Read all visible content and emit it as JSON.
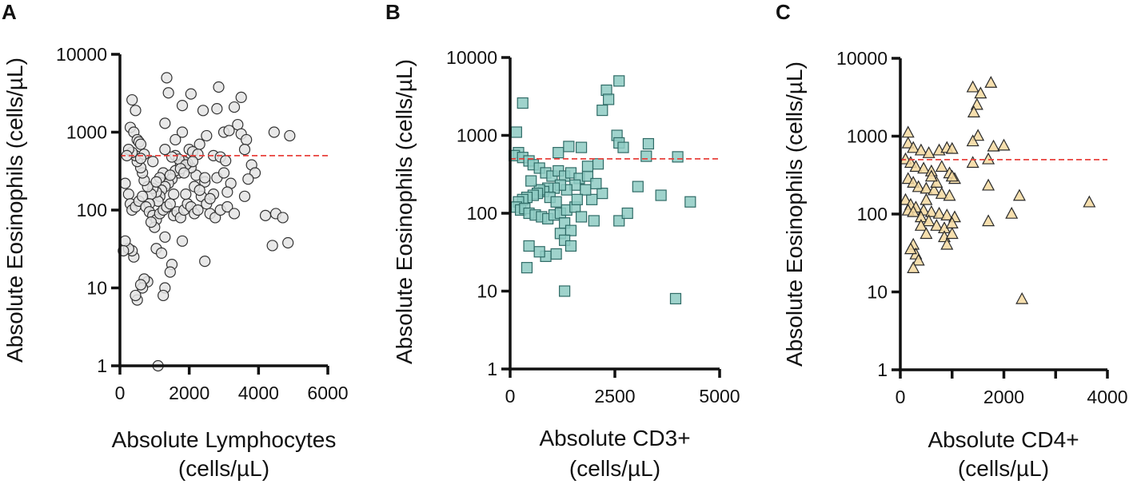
{
  "figure": {
    "reference_line_value": 500,
    "reference_line_color": "#e8413c"
  },
  "chart_data": [
    {
      "panel": "A",
      "type": "scatter",
      "marker": "circle",
      "marker_fill": "#e4e4e4",
      "marker_stroke": "#333333",
      "xlabel": [
        "Absolute Lymphocytes",
        "(cells/µL)"
      ],
      "ylabel": "Absolute Eosinophils (cells/µL)",
      "xlim": [
        0,
        6000
      ],
      "xticks": [
        0,
        2000,
        4000,
        6000
      ],
      "xtick_labels": [
        "0",
        "2000",
        "4000",
        "6000"
      ],
      "yscale": "log",
      "ylim": [
        1,
        10000
      ],
      "yticks": [
        1,
        10,
        100,
        1000,
        10000
      ],
      "ytick_labels": [
        "1",
        "10",
        "100",
        "1000",
        "10000"
      ],
      "reference_line_y": 500,
      "points": [
        [
          1350,
          5000
        ],
        [
          1400,
          3200
        ],
        [
          2050,
          3100
        ],
        [
          2850,
          3800
        ],
        [
          3500,
          2800
        ],
        [
          3300,
          2100
        ],
        [
          2800,
          2000
        ],
        [
          1800,
          2200
        ],
        [
          2400,
          1900
        ],
        [
          350,
          2600
        ],
        [
          450,
          1900
        ],
        [
          300,
          1150
        ],
        [
          400,
          1000
        ],
        [
          500,
          800
        ],
        [
          550,
          750
        ],
        [
          600,
          700
        ],
        [
          1300,
          1300
        ],
        [
          1800,
          1000
        ],
        [
          1600,
          800
        ],
        [
          2300,
          700
        ],
        [
          2500,
          900
        ],
        [
          3000,
          1000
        ],
        [
          3150,
          1050
        ],
        [
          3400,
          1250
        ],
        [
          3500,
          950
        ],
        [
          3650,
          800
        ],
        [
          4450,
          1000
        ],
        [
          4900,
          900
        ],
        [
          3600,
          600
        ],
        [
          3800,
          380
        ],
        [
          3900,
          300
        ],
        [
          3700,
          250
        ],
        [
          3200,
          220
        ],
        [
          3100,
          170
        ],
        [
          2700,
          160
        ],
        [
          2450,
          230
        ],
        [
          2200,
          280
        ],
        [
          2050,
          350
        ],
        [
          1950,
          400
        ],
        [
          1850,
          420
        ],
        [
          1750,
          380
        ],
        [
          1700,
          300
        ],
        [
          1600,
          320
        ],
        [
          1500,
          250
        ],
        [
          1400,
          220
        ],
        [
          1300,
          200
        ],
        [
          1200,
          180
        ],
        [
          1150,
          150
        ],
        [
          1100,
          130
        ],
        [
          1050,
          170
        ],
        [
          950,
          190
        ],
        [
          900,
          160
        ],
        [
          850,
          120
        ],
        [
          800,
          200
        ],
        [
          700,
          240
        ],
        [
          650,
          300
        ],
        [
          600,
          350
        ],
        [
          500,
          420
        ],
        [
          450,
          500
        ],
        [
          350,
          550
        ],
        [
          250,
          600
        ],
        [
          200,
          500
        ],
        [
          150,
          220
        ],
        [
          250,
          160
        ],
        [
          300,
          120
        ],
        [
          350,
          100
        ],
        [
          450,
          110
        ],
        [
          550,
          130
        ],
        [
          650,
          150
        ],
        [
          750,
          110
        ],
        [
          850,
          95
        ],
        [
          950,
          85
        ],
        [
          1050,
          75
        ],
        [
          1150,
          90
        ],
        [
          1250,
          100
        ],
        [
          1350,
          110
        ],
        [
          1450,
          120
        ],
        [
          1550,
          85
        ],
        [
          1650,
          95
        ],
        [
          1750,
          80
        ],
        [
          1850,
          100
        ],
        [
          1950,
          120
        ],
        [
          2050,
          110
        ],
        [
          2150,
          90
        ],
        [
          2250,
          100
        ],
        [
          2350,
          150
        ],
        [
          2500,
          120
        ],
        [
          2600,
          90
        ],
        [
          2750,
          80
        ],
        [
          2900,
          100
        ],
        [
          3100,
          110
        ],
        [
          3300,
          90
        ],
        [
          3600,
          150
        ],
        [
          4200,
          85
        ],
        [
          4500,
          90
        ],
        [
          4700,
          80
        ],
        [
          4400,
          35
        ],
        [
          4850,
          38
        ],
        [
          2450,
          22
        ],
        [
          1800,
          40
        ],
        [
          1500,
          20
        ],
        [
          1450,
          16
        ],
        [
          1300,
          10
        ],
        [
          1250,
          8
        ],
        [
          800,
          12
        ],
        [
          700,
          13
        ],
        [
          650,
          10
        ],
        [
          600,
          11
        ],
        [
          500,
          7
        ],
        [
          450,
          8
        ],
        [
          400,
          25
        ],
        [
          350,
          30
        ],
        [
          250,
          32
        ],
        [
          150,
          40
        ],
        [
          100,
          30
        ],
        [
          1050,
          32
        ],
        [
          1200,
          28
        ],
        [
          1300,
          45
        ],
        [
          1000,
          60
        ],
        [
          900,
          70
        ],
        [
          1100,
          1
        ],
        [
          1600,
          500
        ],
        [
          1700,
          450
        ],
        [
          1900,
          380
        ],
        [
          2000,
          600
        ],
        [
          2100,
          560
        ],
        [
          2250,
          520
        ],
        [
          2700,
          500
        ],
        [
          2900,
          480
        ],
        [
          3050,
          430
        ],
        [
          1250,
          300
        ],
        [
          1150,
          260
        ],
        [
          1050,
          230
        ],
        [
          2150,
          200
        ],
        [
          2300,
          180
        ],
        [
          2600,
          140
        ],
        [
          1900,
          160
        ],
        [
          1450,
          280
        ],
        [
          1750,
          340
        ],
        [
          2800,
          260
        ],
        [
          3000,
          300
        ],
        [
          950,
          420
        ],
        [
          700,
          520
        ],
        [
          600,
          460
        ],
        [
          1500,
          480
        ],
        [
          1850,
          300
        ],
        [
          2100,
          420
        ],
        [
          1300,
          600
        ],
        [
          1550,
          160
        ],
        [
          2450,
          260
        ]
      ]
    },
    {
      "panel": "B",
      "type": "scatter",
      "marker": "square",
      "marker_fill": "#8ecbc3",
      "marker_stroke": "#2f6b66",
      "xlabel": [
        "Absolute CD3+",
        "(cells/µL)"
      ],
      "ylabel": "Absolute Eosinophils (cells/µL)",
      "xlim": [
        0,
        5000
      ],
      "xticks": [
        0,
        2500,
        5000
      ],
      "xtick_labels": [
        "0",
        "2500",
        "5000"
      ],
      "yscale": "log",
      "ylim": [
        1,
        10000
      ],
      "yticks": [
        1,
        10,
        100,
        1000,
        10000
      ],
      "ytick_labels": [
        "1",
        "10",
        "100",
        "1000",
        "10000"
      ],
      "reference_line_y": 500,
      "points": [
        [
          2600,
          5000
        ],
        [
          2300,
          3800
        ],
        [
          2350,
          2900
        ],
        [
          2200,
          2100
        ],
        [
          300,
          2600
        ],
        [
          150,
          1100
        ],
        [
          2550,
          1000
        ],
        [
          2600,
          800
        ],
        [
          3300,
          780
        ],
        [
          2700,
          700
        ],
        [
          1700,
          700
        ],
        [
          1400,
          720
        ],
        [
          1150,
          600
        ],
        [
          200,
          600
        ],
        [
          100,
          550
        ],
        [
          300,
          520
        ],
        [
          450,
          470
        ],
        [
          550,
          420
        ],
        [
          700,
          380
        ],
        [
          850,
          330
        ],
        [
          1000,
          300
        ],
        [
          1150,
          350
        ],
        [
          1300,
          300
        ],
        [
          1450,
          330
        ],
        [
          1650,
          280
        ],
        [
          1850,
          300
        ],
        [
          2100,
          430
        ],
        [
          3250,
          540
        ],
        [
          4000,
          530
        ],
        [
          3050,
          220
        ],
        [
          3600,
          170
        ],
        [
          4300,
          140
        ],
        [
          2200,
          180
        ],
        [
          1950,
          150
        ],
        [
          1800,
          200
        ],
        [
          1550,
          230
        ],
        [
          1350,
          200
        ],
        [
          1200,
          230
        ],
        [
          1050,
          210
        ],
        [
          900,
          210
        ],
        [
          800,
          190
        ],
        [
          700,
          200
        ],
        [
          650,
          180
        ],
        [
          550,
          170
        ],
        [
          400,
          160
        ],
        [
          300,
          150
        ],
        [
          200,
          140
        ],
        [
          150,
          120
        ],
        [
          250,
          110
        ],
        [
          350,
          115
        ],
        [
          450,
          100
        ],
        [
          600,
          95
        ],
        [
          750,
          90
        ],
        [
          900,
          85
        ],
        [
          1050,
          95
        ],
        [
          1200,
          100
        ],
        [
          1350,
          110
        ],
        [
          1550,
          120
        ],
        [
          1700,
          90
        ],
        [
          2000,
          80
        ],
        [
          2600,
          80
        ],
        [
          2800,
          100
        ],
        [
          1300,
          75
        ],
        [
          1450,
          60
        ],
        [
          1200,
          55
        ],
        [
          1300,
          45
        ],
        [
          1450,
          38
        ],
        [
          1100,
          30
        ],
        [
          850,
          28
        ],
        [
          700,
          32
        ],
        [
          450,
          38
        ],
        [
          400,
          20
        ],
        [
          1300,
          10
        ],
        [
          3950,
          8
        ],
        [
          950,
          160
        ],
        [
          1100,
          140
        ],
        [
          2050,
          240
        ],
        [
          1600,
          150
        ],
        [
          500,
          260
        ],
        [
          1850,
          400
        ]
      ]
    },
    {
      "panel": "C",
      "type": "scatter",
      "marker": "triangle",
      "marker_fill": "#f5d9a0",
      "marker_stroke": "#2a2a2a",
      "xlabel": [
        "Absolute CD4+",
        "(cells/µL)"
      ],
      "ylabel": "Absolute Eosinophils (cells/µL)",
      "xlim": [
        0,
        4000
      ],
      "xticks": [
        0,
        1000,
        2000,
        3000,
        4000
      ],
      "xtick_labels": [
        "0",
        "",
        "2000",
        "",
        "4000"
      ],
      "yscale": "log",
      "ylim": [
        1,
        10000
      ],
      "yticks": [
        1,
        10,
        100,
        1000,
        10000
      ],
      "ytick_labels": [
        "1",
        "10",
        "100",
        "1000",
        "10000"
      ],
      "reference_line_y": 500,
      "points": [
        [
          1750,
          4800
        ],
        [
          1400,
          4200
        ],
        [
          1550,
          3500
        ],
        [
          1480,
          2500
        ],
        [
          1420,
          2000
        ],
        [
          150,
          1100
        ],
        [
          1500,
          1000
        ],
        [
          1400,
          850
        ],
        [
          1800,
          730
        ],
        [
          2000,
          750
        ],
        [
          1700,
          500
        ],
        [
          1400,
          450
        ],
        [
          150,
          800
        ],
        [
          250,
          700
        ],
        [
          400,
          650
        ],
        [
          550,
          600
        ],
        [
          750,
          650
        ],
        [
          900,
          700
        ],
        [
          1000,
          680
        ],
        [
          100,
          500
        ],
        [
          200,
          450
        ],
        [
          300,
          400
        ],
        [
          450,
          380
        ],
        [
          600,
          350
        ],
        [
          800,
          400
        ],
        [
          950,
          330
        ],
        [
          1050,
          280
        ],
        [
          150,
          280
        ],
        [
          250,
          250
        ],
        [
          350,
          220
        ],
        [
          500,
          210
        ],
        [
          650,
          200
        ],
        [
          800,
          180
        ],
        [
          950,
          170
        ],
        [
          100,
          150
        ],
        [
          200,
          130
        ],
        [
          300,
          120
        ],
        [
          450,
          110
        ],
        [
          600,
          105
        ],
        [
          750,
          100
        ],
        [
          900,
          95
        ],
        [
          1050,
          90
        ],
        [
          150,
          110
        ],
        [
          250,
          105
        ],
        [
          400,
          90
        ],
        [
          550,
          80
        ],
        [
          700,
          70
        ],
        [
          850,
          65
        ],
        [
          1000,
          75
        ],
        [
          1700,
          80
        ],
        [
          2150,
          100
        ],
        [
          2300,
          170
        ],
        [
          1700,
          230
        ],
        [
          850,
          50
        ],
        [
          1000,
          55
        ],
        [
          900,
          40
        ],
        [
          400,
          70
        ],
        [
          500,
          55
        ],
        [
          250,
          40
        ],
        [
          300,
          30
        ],
        [
          200,
          35
        ],
        [
          350,
          25
        ],
        [
          250,
          20
        ],
        [
          2350,
          8
        ],
        [
          3650,
          140
        ],
        [
          700,
          250
        ],
        [
          600,
          300
        ],
        [
          1000,
          300
        ],
        [
          500,
          150
        ]
      ]
    }
  ]
}
